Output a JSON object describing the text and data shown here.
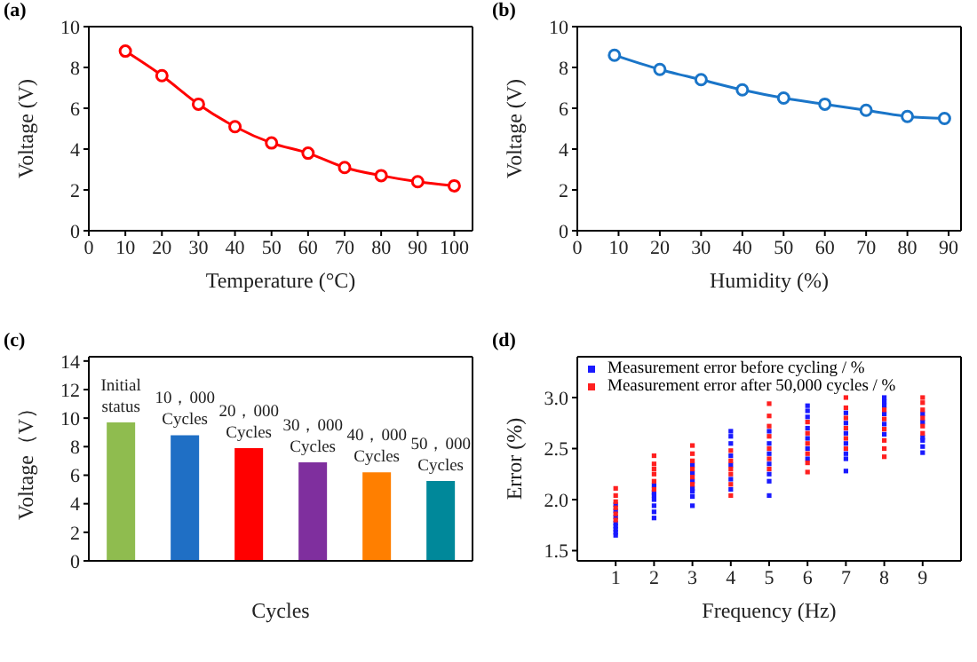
{
  "chart_data": [
    {
      "type": "line",
      "title": "(a)",
      "xlabel": "Temperature (°C)",
      "ylabel": "Voltage (V)",
      "x": [
        10,
        20,
        30,
        40,
        50,
        60,
        70,
        80,
        90,
        100
      ],
      "series": [
        {
          "color": "#ff0000",
          "values": [
            8.8,
            7.6,
            6.2,
            5.1,
            4.3,
            3.8,
            3.1,
            2.7,
            2.4,
            2.2
          ]
        }
      ],
      "xlim": [
        0,
        105
      ],
      "xticks": [
        0,
        10,
        20,
        30,
        40,
        50,
        60,
        70,
        80,
        90,
        100
      ],
      "ylim": [
        0,
        10
      ],
      "yticks": [
        0,
        2,
        4,
        6,
        8,
        10
      ],
      "grid": false,
      "legend": false,
      "marker": "circle",
      "line_style": "solid"
    },
    {
      "type": "line",
      "title": "(b)",
      "xlabel": "Humidity (%)",
      "ylabel": "Voltage (V)",
      "x": [
        9,
        20,
        30,
        40,
        50,
        60,
        70,
        80,
        89
      ],
      "series": [
        {
          "color": "#1a75c8",
          "values": [
            8.6,
            7.9,
            7.4,
            6.9,
            6.5,
            6.2,
            5.9,
            5.6,
            5.5
          ]
        }
      ],
      "xlim": [
        0,
        93
      ],
      "xticks": [
        0,
        10,
        20,
        30,
        40,
        50,
        60,
        70,
        80,
        90
      ],
      "ylim": [
        0,
        10
      ],
      "yticks": [
        0,
        2,
        4,
        6,
        8,
        10
      ],
      "grid": false,
      "legend": false,
      "marker": "circle",
      "line_style": "solid"
    },
    {
      "type": "bar",
      "title": "(c)",
      "xlabel": "Cycles",
      "ylabel": "Voltage（V）",
      "categories": [
        "Initial status",
        "10，000 Cycles",
        "20，000 Cycles",
        "30，000 Cycles",
        "40，000 Cycles",
        "50，000 Cycles"
      ],
      "values": [
        9.7,
        8.8,
        7.9,
        6.9,
        6.2,
        5.6
      ],
      "colors": [
        "#8fbc4f",
        "#1f6fc5",
        "#ff0000",
        "#7f2f9e",
        "#ff7f00",
        "#00889a"
      ],
      "ylim": [
        0,
        14.3
      ],
      "yticks": [
        0,
        2,
        4,
        6,
        8,
        10,
        12,
        14
      ],
      "grid": false,
      "legend": false,
      "tick_labels": "y"
    },
    {
      "type": "scatter",
      "title": "(d)",
      "xlabel": "Frequency (Hz)",
      "ylabel": "Error (%)",
      "series": [
        {
          "name": "Measurement error before cycling / %",
          "color": "#1a1aff",
          "x": [
            1,
            1,
            1,
            1,
            1,
            1,
            1,
            1,
            2,
            2,
            2,
            2,
            2,
            2,
            2,
            3,
            3,
            3,
            3,
            3,
            3,
            3,
            4,
            4,
            4,
            4,
            4,
            4,
            4,
            5,
            5,
            5,
            5,
            5,
            5,
            5,
            6,
            6,
            6,
            6,
            6,
            6,
            6,
            7,
            7,
            7,
            7,
            7,
            7,
            7,
            8,
            8,
            8,
            8,
            8,
            8,
            9,
            9,
            9,
            9,
            9,
            9
          ],
          "values": [
            1.65,
            1.68,
            1.71,
            1.74,
            1.77,
            1.83,
            1.89,
            1.95,
            1.82,
            1.88,
            1.94,
            2.0,
            2.04,
            2.07,
            2.14,
            1.94,
            2.03,
            2.08,
            2.11,
            2.18,
            2.26,
            2.34,
            2.1,
            2.2,
            2.34,
            2.43,
            2.55,
            2.62,
            2.67,
            2.04,
            2.18,
            2.25,
            2.35,
            2.45,
            2.55,
            2.67,
            2.4,
            2.5,
            2.6,
            2.7,
            2.81,
            2.87,
            2.92,
            2.28,
            2.4,
            2.45,
            2.55,
            2.65,
            2.75,
            2.85,
            2.64,
            2.74,
            2.84,
            2.92,
            2.96,
            3.0,
            2.46,
            2.52,
            2.58,
            2.61,
            2.76,
            2.84
          ]
        },
        {
          "name": "Measurement error after 50,000 cycles / %",
          "color": "#ff2020",
          "x": [
            1,
            1,
            1,
            1,
            1,
            1,
            2,
            2,
            2,
            2,
            2,
            2,
            3,
            3,
            3,
            3,
            3,
            3,
            4,
            4,
            4,
            4,
            4,
            4,
            5,
            5,
            5,
            5,
            5,
            5,
            5,
            6,
            6,
            6,
            6,
            6,
            6,
            7,
            7,
            7,
            7,
            7,
            7,
            8,
            8,
            8,
            8,
            8,
            8,
            9,
            9,
            9,
            9,
            9,
            9
          ],
          "values": [
            1.8,
            1.86,
            1.92,
            1.98,
            2.04,
            2.11,
            2.1,
            2.18,
            2.25,
            2.3,
            2.35,
            2.43,
            2.15,
            2.22,
            2.3,
            2.38,
            2.45,
            2.53,
            2.04,
            2.15,
            2.25,
            2.3,
            2.38,
            2.48,
            2.3,
            2.4,
            2.5,
            2.62,
            2.72,
            2.82,
            2.94,
            2.27,
            2.36,
            2.45,
            2.55,
            2.65,
            2.76,
            2.5,
            2.6,
            2.7,
            2.8,
            2.9,
            3.0,
            2.42,
            2.5,
            2.58,
            2.69,
            2.79,
            2.88,
            2.65,
            2.72,
            2.8,
            2.88,
            2.95,
            3.0
          ]
        }
      ],
      "xlim": [
        0,
        10
      ],
      "xticks": [
        1,
        2,
        3,
        4,
        5,
        6,
        7,
        8,
        9
      ],
      "ylim": [
        1.4,
        3.4
      ],
      "yticks": [
        {
          "value": 1.5,
          "label": "1.5"
        },
        {
          "value": 2,
          "label": "2.0"
        },
        {
          "value": 2.5,
          "label": "2.5"
        },
        {
          "value": 3,
          "label": "3.0"
        }
      ],
      "grid": false,
      "legend": "top left",
      "marker": "square"
    }
  ]
}
